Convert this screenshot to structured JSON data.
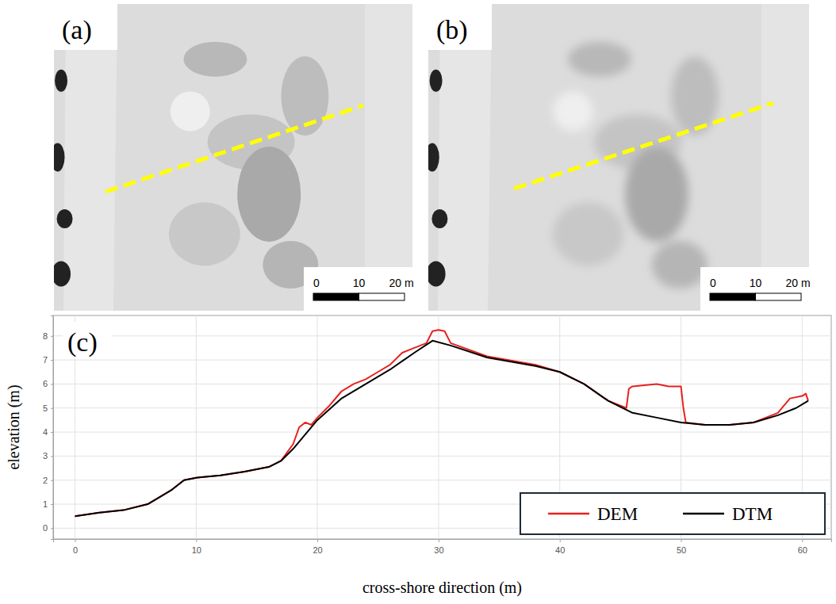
{
  "panels": [
    {
      "label": "(a)",
      "scale_bar": {
        "ticks": [
          0,
          10,
          {
            "value": 20,
            "label": "20 m"
          }
        ]
      }
    },
    {
      "label": "(b)",
      "scale_bar": {
        "ticks": [
          0,
          10,
          {
            "value": 20,
            "label": "20 m"
          }
        ]
      }
    },
    {
      "label": "(c)"
    }
  ],
  "chart_data": {
    "type": "line",
    "x_label": "cross-shore direction (m)",
    "y_label": "elevation (m)",
    "xlim": [
      -1.8,
      62.4
    ],
    "ylim": [
      -0.45,
      8.85
    ],
    "xticks": [
      0,
      10,
      20,
      30,
      40,
      50,
      60
    ],
    "yticks": [
      0,
      1,
      2,
      3,
      4,
      5,
      6,
      7,
      8
    ],
    "grid": true,
    "legend": "lower right",
    "series": [
      {
        "name": "DEM",
        "color": "#e8211f",
        "x": [
          0,
          2,
          4,
          6,
          8,
          9,
          10,
          12,
          14,
          16,
          17,
          18,
          18.5,
          19,
          19.5,
          20,
          21,
          22,
          23,
          24,
          25,
          26,
          27,
          28,
          29,
          29.5,
          30,
          30.5,
          31,
          34,
          38,
          40,
          42,
          44,
          45.5,
          45.7,
          46,
          48,
          49,
          50,
          50.2,
          50.4,
          52,
          54,
          56,
          58,
          58.5,
          59,
          60,
          60.3,
          60.5
        ],
        "values": [
          0.5,
          0.65,
          0.75,
          1.0,
          1.6,
          2.0,
          2.1,
          2.2,
          2.35,
          2.55,
          2.8,
          3.5,
          4.2,
          4.4,
          4.3,
          4.6,
          5.1,
          5.7,
          6.0,
          6.2,
          6.5,
          6.8,
          7.3,
          7.5,
          7.7,
          8.2,
          8.25,
          8.2,
          7.7,
          7.15,
          6.8,
          6.5,
          6.0,
          5.3,
          5.0,
          5.8,
          5.9,
          6.0,
          5.9,
          5.9,
          5.0,
          4.4,
          4.3,
          4.3,
          4.4,
          4.8,
          5.1,
          5.4,
          5.5,
          5.6,
          5.3
        ]
      },
      {
        "name": "DTM",
        "color": "#000000",
        "x": [
          0,
          2,
          4,
          6,
          8,
          9,
          10,
          12,
          14,
          16,
          17,
          18,
          20,
          22,
          24,
          26,
          28,
          29.5,
          31,
          34,
          38,
          40,
          42,
          44,
          46,
          48,
          50,
          52,
          54,
          56,
          58,
          59.5,
          60.5
        ],
        "values": [
          0.5,
          0.65,
          0.75,
          1.0,
          1.6,
          2.0,
          2.1,
          2.2,
          2.35,
          2.55,
          2.8,
          3.3,
          4.5,
          5.4,
          6.0,
          6.6,
          7.3,
          7.8,
          7.6,
          7.1,
          6.75,
          6.5,
          6.0,
          5.3,
          4.8,
          4.6,
          4.4,
          4.3,
          4.3,
          4.4,
          4.7,
          5.0,
          5.3
        ]
      }
    ]
  }
}
